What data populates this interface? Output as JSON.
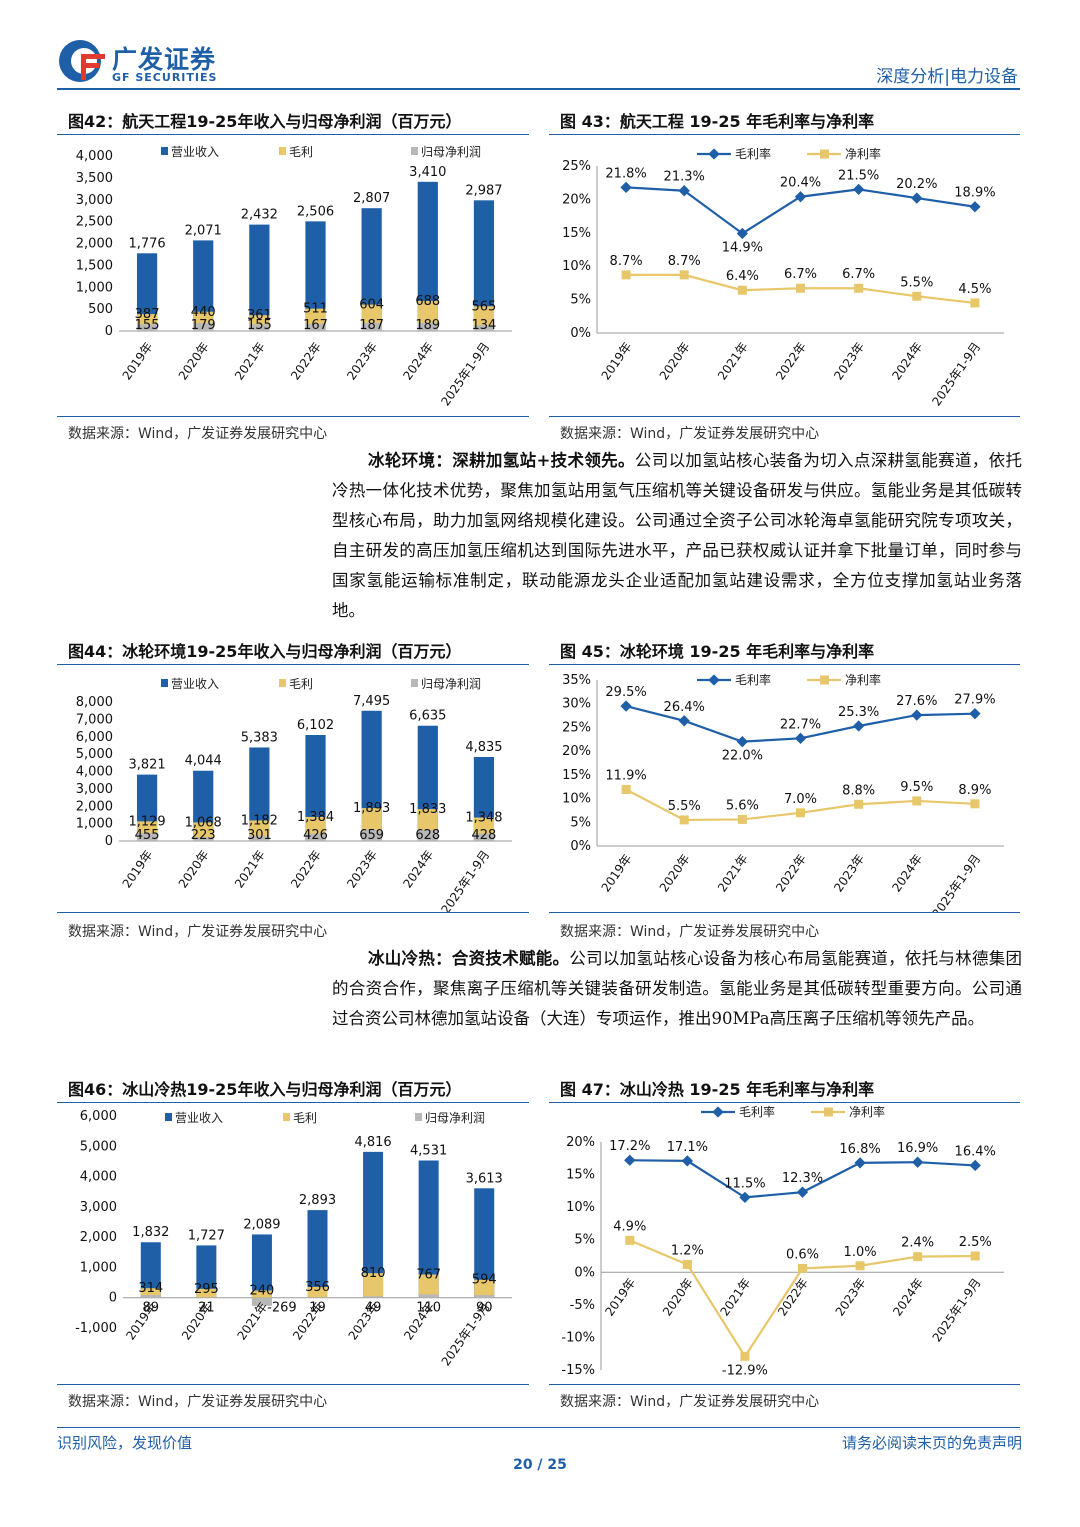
{
  "header": {
    "brand": "广发证券",
    "brand_en": "GF SECURITIES",
    "section": "深度分析|电力设备"
  },
  "figures": {
    "fig42_title": "图42：航天工程19-25年收入与归母净利润（百万元）",
    "fig43_title": "图 43：航天工程 19-25 年毛利率与净利率",
    "fig44_title": "图44：冰轮环境19-25年收入与归母净利润（百万元）",
    "fig45_title": "图 45：冰轮环境 19-25 年毛利率与净利率",
    "fig46_title": "图46：冰山冷热19-25年收入与归母净利润（百万元）",
    "fig47_title": "图 47：冰山冷热 19-25 年毛利率与净利率",
    "source": "数据来源：Wind，广发证券发展研究中心"
  },
  "text": {
    "p1_bold": "冰轮环境：深耕加氢站+技术领先。",
    "p1_rest": "公司以加氢站核心装备为切入点深耕氢能赛道，依托冷热一体化技术优势，聚焦加氢站用氢气压缩机等关键设备研发与供应。氢能业务是其低碳转型核心布局，助力加氢网络规模化建设。公司通过全资子公司冰轮海卓氢能研究院专项攻关，自主研发的高压加氢压缩机达到国际先进水平，产品已获权威认证并拿下批量订单，同时参与国家氢能运输标准制定，联动能源龙头企业适配加氢站建设需求，全方位支撑加氢站业务落地。",
    "p2_bold": "冰山冷热：合资技术赋能。",
    "p2_rest": "公司以加氢站核心设备为核心布局氢能赛道，依托与林德集团的合资合作，聚焦离子压缩机等关键装备研发制造。氢能业务是其低碳转型重要方向。公司通过合资公司林德加氢站设备（大连）专项运作，推出90MPa高压离子压缩机等领先产品。"
  },
  "footer": {
    "left": "识别风险，发现价值",
    "right": "请务必阅读末页的免责声明",
    "page": "20 / 25"
  },
  "chart_data": [
    {
      "id": "fig42",
      "type": "bar",
      "categories": [
        "2019年",
        "2020年",
        "2021年",
        "2022年",
        "2023年",
        "2024年",
        "2025年1-9月"
      ],
      "series": [
        {
          "name": "营业收入",
          "values": [
            1776,
            2071,
            2432,
            2506,
            2807,
            3410,
            2987
          ],
          "labels": [
            "1,776",
            "2,071",
            "2,432",
            "2,506",
            "2,807",
            "3,410",
            "2,987"
          ]
        },
        {
          "name": "毛利",
          "values": [
            387,
            440,
            361,
            511,
            604,
            688,
            565
          ],
          "labels": [
            "387",
            "440",
            "361",
            "511",
            "604",
            "688",
            "565"
          ]
        },
        {
          "name": "归母净利润",
          "values": [
            155,
            179,
            155,
            167,
            187,
            189,
            134
          ],
          "labels": [
            "155",
            "179",
            "155",
            "167",
            "187",
            "189",
            "134"
          ]
        }
      ],
      "ylim": [
        0,
        4000
      ],
      "yticks": [
        "0",
        "500",
        "1,000",
        "1,500",
        "2,000",
        "2,500",
        "3,000",
        "3,500",
        "4,000"
      ],
      "ytick_values": [
        0,
        500,
        1000,
        1500,
        2000,
        2500,
        3000,
        3500,
        4000
      ],
      "colors": [
        "#1f5fa8",
        "#e8c66a",
        "#b8b8b8"
      ],
      "legend": "top"
    },
    {
      "id": "fig43",
      "type": "line",
      "categories": [
        "2019年",
        "2020年",
        "2021年",
        "2022年",
        "2023年",
        "2024年",
        "2025年1-9月"
      ],
      "series": [
        {
          "name": "毛利率",
          "values": [
            21.8,
            21.3,
            14.9,
            20.4,
            21.5,
            20.2,
            18.9
          ],
          "labels": [
            "21.8%",
            "21.3%",
            "14.9%",
            "20.4%",
            "21.5%",
            "20.2%",
            "18.9%"
          ]
        },
        {
          "name": "净利率",
          "values": [
            8.7,
            8.7,
            6.4,
            6.7,
            6.7,
            5.5,
            4.5
          ],
          "labels": [
            "8.7%",
            "8.7%",
            "6.4%",
            "6.7%",
            "6.7%",
            "5.5%",
            "4.5%"
          ]
        }
      ],
      "ylim": [
        0,
        25
      ],
      "yticks": [
        "0%",
        "5%",
        "10%",
        "15%",
        "20%",
        "25%"
      ],
      "ytick_values": [
        0,
        5,
        10,
        15,
        20,
        25
      ],
      "colors": [
        "#1f5fa8",
        "#e8c66a"
      ],
      "legend": "top"
    },
    {
      "id": "fig44",
      "type": "bar",
      "categories": [
        "2019年",
        "2020年",
        "2021年",
        "2022年",
        "2023年",
        "2024年",
        "2025年1-9月"
      ],
      "series": [
        {
          "name": "营业收入",
          "values": [
            3821,
            4044,
            5383,
            6102,
            7495,
            6635,
            4835
          ],
          "labels": [
            "3,821",
            "4,044",
            "5,383",
            "6,102",
            "7,495",
            "6,635",
            "4,835"
          ]
        },
        {
          "name": "毛利",
          "values": [
            1129,
            1068,
            1182,
            1384,
            1893,
            1833,
            1348
          ],
          "labels": [
            "1,129",
            "1,068",
            "1,182",
            "1,384",
            "1,893",
            "1,833",
            "1,348"
          ]
        },
        {
          "name": "归母净利润",
          "values": [
            455,
            223,
            301,
            426,
            659,
            628,
            428
          ],
          "labels": [
            "455",
            "223",
            "301",
            "426",
            "659",
            "628",
            "428"
          ]
        }
      ],
      "ylim": [
        0,
        8000
      ],
      "yticks": [
        "0",
        "1,000",
        "2,000",
        "3,000",
        "4,000",
        "5,000",
        "6,000",
        "7,000",
        "8,000"
      ],
      "ytick_values": [
        0,
        1000,
        2000,
        3000,
        4000,
        5000,
        6000,
        7000,
        8000
      ],
      "colors": [
        "#1f5fa8",
        "#e8c66a",
        "#b8b8b8"
      ],
      "legend": "top"
    },
    {
      "id": "fig45",
      "type": "line",
      "categories": [
        "2019年",
        "2020年",
        "2021年",
        "2022年",
        "2023年",
        "2024年",
        "2025年1-9月"
      ],
      "series": [
        {
          "name": "毛利率",
          "values": [
            29.5,
            26.4,
            22.0,
            22.7,
            25.3,
            27.6,
            27.9
          ],
          "labels": [
            "29.5%",
            "26.4%",
            "22.0%",
            "22.7%",
            "25.3%",
            "27.6%",
            "27.9%"
          ]
        },
        {
          "name": "净利率",
          "values": [
            11.9,
            5.5,
            5.6,
            7.0,
            8.8,
            9.5,
            8.9
          ],
          "labels": [
            "11.9%",
            "5.5%",
            "5.6%",
            "7.0%",
            "8.8%",
            "9.5%",
            "8.9%"
          ]
        }
      ],
      "ylim": [
        0,
        35
      ],
      "yticks": [
        "0%",
        "5%",
        "10%",
        "15%",
        "20%",
        "25%",
        "30%",
        "35%"
      ],
      "ytick_values": [
        0,
        5,
        10,
        15,
        20,
        25,
        30,
        35
      ],
      "colors": [
        "#1f5fa8",
        "#e8c66a"
      ],
      "legend": "top"
    },
    {
      "id": "fig46",
      "type": "bar",
      "categories": [
        "2019年",
        "2020年",
        "2021年",
        "2022年",
        "2023年",
        "2024年",
        "2025年1-9月"
      ],
      "series": [
        {
          "name": "营业收入",
          "values": [
            1832,
            1727,
            2089,
            2893,
            4816,
            4531,
            3613
          ],
          "labels": [
            "1,832",
            "1,727",
            "2,089",
            "2,893",
            "4,816",
            "4,531",
            "3,613"
          ]
        },
        {
          "name": "毛利",
          "values": [
            314,
            295,
            240,
            356,
            810,
            767,
            594
          ],
          "labels": [
            "314",
            "295",
            "240",
            "356",
            "810",
            "767",
            "594"
          ]
        },
        {
          "name": "归母净利润",
          "values": [
            89,
            21,
            -269,
            19,
            49,
            110,
            90
          ],
          "labels": [
            "89",
            "21",
            "-269",
            "19",
            "49",
            "110",
            "90"
          ]
        }
      ],
      "ylim": [
        -1000,
        6000
      ],
      "yticks": [
        "-1,000",
        "0",
        "1,000",
        "2,000",
        "3,000",
        "4,000",
        "5,000",
        "6,000"
      ],
      "ytick_values": [
        -1000,
        0,
        1000,
        2000,
        3000,
        4000,
        5000,
        6000
      ],
      "colors": [
        "#1f5fa8",
        "#e8c66a",
        "#b8b8b8"
      ],
      "legend": "top"
    },
    {
      "id": "fig47",
      "type": "line",
      "categories": [
        "2019年",
        "2020年",
        "2021年",
        "2022年",
        "2023年",
        "2024年",
        "2025年1-9月"
      ],
      "series": [
        {
          "name": "毛利率",
          "values": [
            17.2,
            17.1,
            11.5,
            12.3,
            16.8,
            16.9,
            16.4
          ],
          "labels": [
            "17.2%",
            "17.1%",
            "11.5%",
            "12.3%",
            "16.8%",
            "16.9%",
            "16.4%"
          ]
        },
        {
          "name": "净利率",
          "values": [
            4.9,
            1.2,
            -12.9,
            0.6,
            1.0,
            2.4,
            2.5
          ],
          "labels": [
            "4.9%",
            "1.2%",
            "-12.9%",
            "0.6%",
            "1.0%",
            "2.4%",
            "2.5%"
          ]
        }
      ],
      "ylim": [
        -15,
        20
      ],
      "yticks": [
        "-15%",
        "-10%",
        "-5%",
        "0%",
        "5%",
        "10%",
        "15%",
        "20%"
      ],
      "ytick_values": [
        -15,
        -10,
        -5,
        0,
        5,
        10,
        15,
        20
      ],
      "colors": [
        "#1f5fa8",
        "#e8c66a"
      ],
      "legend": "top"
    }
  ]
}
